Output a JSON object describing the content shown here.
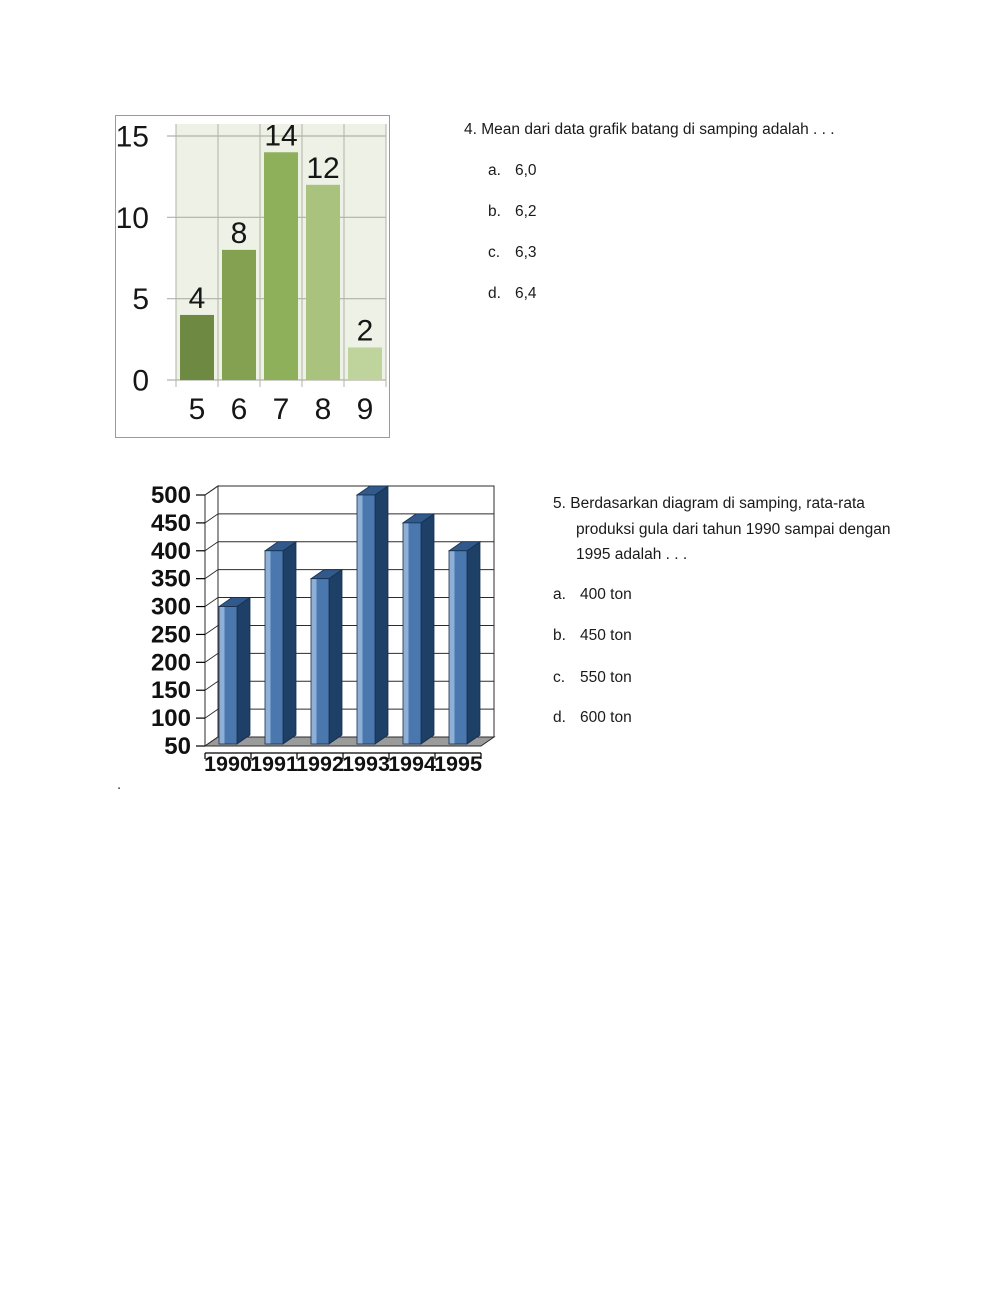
{
  "document": {
    "stray_dot": "."
  },
  "questions": [
    {
      "number": "4.",
      "text": "Mean dari data grafik batang di samping adalah . . .",
      "options": [
        {
          "letter": "a.",
          "text": "6,0"
        },
        {
          "letter": "b.",
          "text": "6,2"
        },
        {
          "letter": "c.",
          "text": "6,3"
        },
        {
          "letter": "d.",
          "text": "6,4"
        }
      ]
    },
    {
      "number": "5.",
      "lines": [
        "5. Berdasarkan diagram di samping, rata-rata",
        "produksi gula dari tahun 1990 sampai dengan",
        "1995 adalah . . ."
      ],
      "options": [
        {
          "letter": "a.",
          "text": "400 ton"
        },
        {
          "letter": "b.",
          "text": "450 ton"
        },
        {
          "letter": "c.",
          "text": "550 ton"
        },
        {
          "letter": "d.",
          "text": "600 ton"
        }
      ]
    }
  ],
  "chart_data": [
    {
      "type": "bar",
      "title": "",
      "categories": [
        "5",
        "6",
        "7",
        "8",
        "9"
      ],
      "values": [
        4,
        8,
        14,
        12,
        2
      ],
      "data_labels": [
        "4",
        "8",
        "14",
        "12",
        "2"
      ],
      "y_ticks": [
        0,
        5,
        10,
        15
      ],
      "ylim": [
        0,
        15.8
      ],
      "grid": true,
      "legend": false,
      "plot_bg": "#eef1e6",
      "grid_color": "#b0b2a8",
      "bar_colors": [
        "#6e8a42",
        "#84a152",
        "#8fb05a",
        "#a9c27d",
        "#bfd39d"
      ],
      "label_color": "#161616"
    },
    {
      "type": "bar",
      "style": "3d",
      "title": "",
      "categories": [
        "1990",
        "1991",
        "1992",
        "1993",
        "1994",
        "1995"
      ],
      "values": [
        300,
        400,
        350,
        500,
        450,
        400
      ],
      "y_ticks": [
        50,
        100,
        150,
        200,
        250,
        300,
        350,
        400,
        450,
        500
      ],
      "ylim": [
        50,
        500
      ],
      "grid": true,
      "legend": false,
      "colors": {
        "front": "#4a77ad",
        "front_highlight": "#8fb0d6",
        "side": "#1e3f66",
        "top": "#31598c",
        "edge": "#16304f",
        "floor": "#9b9b9b",
        "line": "#2b2b2b",
        "label": "#111111"
      }
    }
  ]
}
